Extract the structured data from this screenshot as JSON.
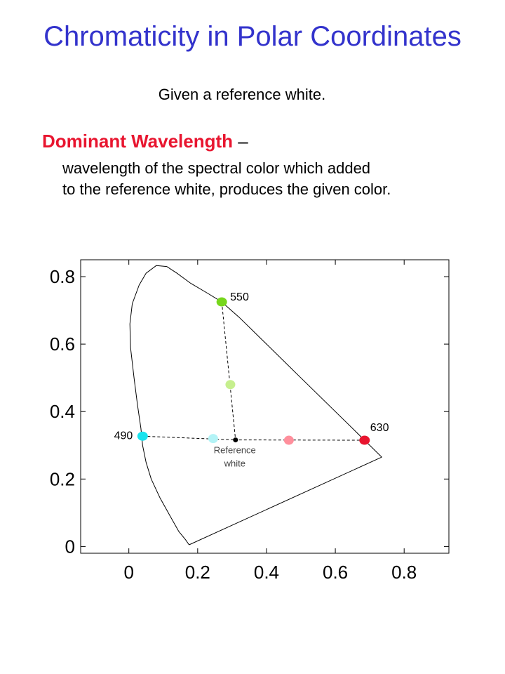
{
  "slide": {
    "title": "Chromaticity in Polar Coordinates",
    "intro": "Given a reference white.",
    "term": "Dominant Wavelength",
    "term_separator": "–",
    "definition_lines": [
      "wavelength of the spectral color which added",
      "to the reference white, produces the given color."
    ]
  },
  "chart_data": {
    "type": "scatter",
    "title": "",
    "xlabel": "",
    "ylabel": "",
    "xlim": [
      -0.14,
      0.93
    ],
    "ylim": [
      -0.02,
      0.85
    ],
    "x_ticks": [
      0,
      0.2,
      0.4,
      0.6,
      0.8
    ],
    "x_tick_labels": [
      "0",
      "0.2",
      "0.4",
      "0.6",
      "0.8"
    ],
    "y_ticks": [
      0,
      0.2,
      0.4,
      0.6,
      0.8
    ],
    "y_tick_labels": [
      "0",
      "0.2",
      "0.4",
      "0.6",
      "0.8"
    ],
    "grid": false,
    "spectral_locus": [
      [
        0.175,
        0.005
      ],
      [
        0.165,
        0.02
      ],
      [
        0.145,
        0.045
      ],
      [
        0.12,
        0.09
      ],
      [
        0.09,
        0.145
      ],
      [
        0.065,
        0.2
      ],
      [
        0.05,
        0.25
      ],
      [
        0.04,
        0.3
      ],
      [
        0.035,
        0.35
      ],
      [
        0.025,
        0.42
      ],
      [
        0.015,
        0.5
      ],
      [
        0.005,
        0.59
      ],
      [
        0.003,
        0.66
      ],
      [
        0.01,
        0.72
      ],
      [
        0.03,
        0.775
      ],
      [
        0.05,
        0.81
      ],
      [
        0.08,
        0.833
      ],
      [
        0.11,
        0.83
      ],
      [
        0.14,
        0.81
      ],
      [
        0.18,
        0.78
      ],
      [
        0.23,
        0.75
      ],
      [
        0.27,
        0.725
      ],
      [
        0.32,
        0.68
      ],
      [
        0.4,
        0.6
      ],
      [
        0.5,
        0.5
      ],
      [
        0.6,
        0.4
      ],
      [
        0.68,
        0.32
      ],
      [
        0.735,
        0.265
      ]
    ],
    "line_of_purples": [
      [
        0.735,
        0.265
      ],
      [
        0.175,
        0.005
      ]
    ],
    "reference_white": {
      "x": 0.31,
      "y": 0.316,
      "label": "Reference\nwhite",
      "color": "#000000"
    },
    "spectral_points": [
      {
        "label": "550",
        "x": 0.27,
        "y": 0.725,
        "color": "#76d61c"
      },
      {
        "label": "490",
        "x": 0.04,
        "y": 0.327,
        "color": "#19e3ee"
      },
      {
        "label": "630",
        "x": 0.685,
        "y": 0.315,
        "color": "#e8152f"
      }
    ],
    "mixture_points": [
      {
        "x": 0.295,
        "y": 0.48,
        "color": "#c6ef8e"
      },
      {
        "x": 0.245,
        "y": 0.32,
        "color": "#b3f3f6"
      },
      {
        "x": 0.465,
        "y": 0.315,
        "color": "#ff8f9c"
      }
    ],
    "dashed_lines": [
      [
        [
          0.27,
          0.725
        ],
        [
          0.31,
          0.316
        ]
      ],
      [
        [
          0.04,
          0.327
        ],
        [
          0.31,
          0.316
        ]
      ],
      [
        [
          0.685,
          0.315
        ],
        [
          0.31,
          0.316
        ]
      ]
    ]
  }
}
